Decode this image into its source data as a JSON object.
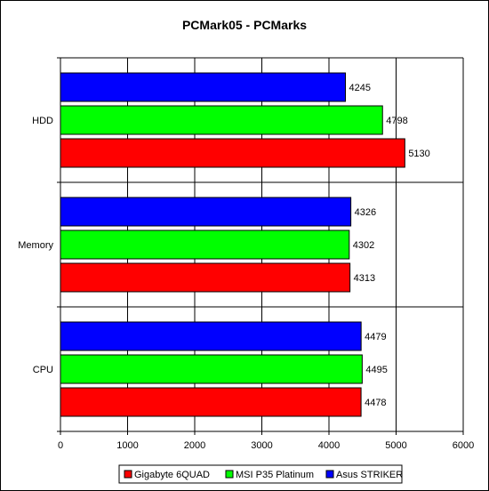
{
  "chart_data": {
    "type": "bar",
    "orientation": "horizontal",
    "title": "PCMark05 - PCMarks",
    "xlabel": "",
    "ylabel": "",
    "categories": [
      "HDD",
      "Memory",
      "CPU"
    ],
    "series": [
      {
        "name": "Asus STRIKER",
        "color": "#0000ff",
        "values": [
          4245,
          4326,
          4479
        ]
      },
      {
        "name": "MSI P35 Platinum",
        "color": "#00ff00",
        "values": [
          4798,
          4302,
          4495
        ]
      },
      {
        "name": "Gigabyte 6QUAD",
        "color": "#ff0000",
        "values": [
          5130,
          4313,
          4478
        ]
      }
    ],
    "xlim": [
      0,
      6000
    ],
    "xticks": [
      0,
      1000,
      2000,
      3000,
      4000,
      5000,
      6000
    ],
    "grid": "vertical",
    "legend": {
      "position": "bottom",
      "order": [
        "Gigabyte 6QUAD",
        "MSI P35 Platinum",
        "Asus STRIKER"
      ]
    }
  }
}
